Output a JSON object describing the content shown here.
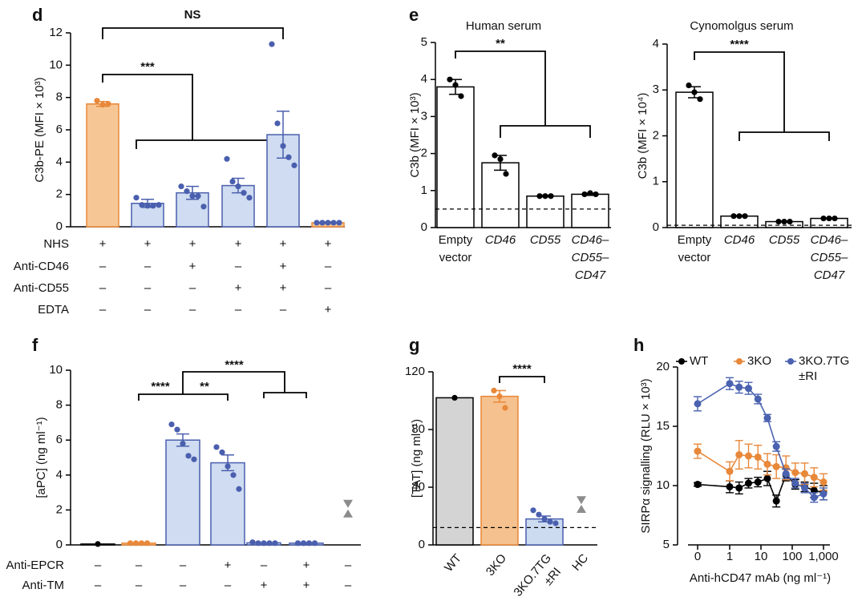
{
  "chart_data": [
    {
      "panel": "d",
      "type": "bar",
      "ylabel": "C3b-PE (MFI × 10³)",
      "ylim": [
        0,
        12
      ],
      "yticks": [
        0,
        2,
        4,
        6,
        8,
        10,
        12
      ],
      "values": [
        7.6,
        1.45,
        2.1,
        2.55,
        5.7,
        0.25
      ],
      "errors": [
        0.15,
        0.25,
        0.4,
        0.45,
        1.45,
        0.05
      ],
      "points": [
        [
          7.8,
          7.55,
          7.6
        ],
        [
          1.8,
          1.35,
          1.3,
          1.3,
          1.35
        ],
        [
          2.5,
          2.2,
          1.9,
          1.9,
          1.25
        ],
        [
          4.2,
          2.8,
          2.5,
          2.1,
          1.8
        ],
        [
          11.3,
          6.4,
          5.0,
          4.3,
          3.8
        ],
        [
          0.25,
          0.25,
          0.25,
          0.25,
          0.25
        ]
      ],
      "fill_colors": [
        "#f6c795",
        "#cfdcf1",
        "#cfdcf1",
        "#cfdcf1",
        "#cfdcf1",
        "#f6c795"
      ],
      "edge_colors": [
        "#e8883a",
        "#4a5fae",
        "#4a5fae",
        "#4a5fae",
        "#4a5fae",
        "#e8883a"
      ],
      "point_colors": [
        "#e8883a",
        "#4a5fae",
        "#4a5fae",
        "#4a5fae",
        "#4a5fae",
        "#4a5fae"
      ],
      "significance": [
        "NS",
        "***"
      ],
      "conditions": [
        {
          "label": "NHS",
          "marks": [
            "+",
            "+",
            "+",
            "+",
            "+",
            "+"
          ]
        },
        {
          "label": "Anti-CD46",
          "marks": [
            "–",
            "–",
            "+",
            "–",
            "+",
            "–"
          ]
        },
        {
          "label": "Anti-CD55",
          "marks": [
            "–",
            "–",
            "–",
            "+",
            "+",
            "–"
          ]
        },
        {
          "label": "EDTA",
          "marks": [
            "–",
            "–",
            "–",
            "–",
            "–",
            "+"
          ]
        }
      ]
    },
    {
      "panel": "e",
      "type": "bar",
      "title": "Human serum",
      "ylabel": "C3b (MFI × 10³)",
      "ylim": [
        0,
        5
      ],
      "yticks": [
        0,
        1,
        2,
        3,
        4,
        5
      ],
      "categories": [
        [
          "Empty",
          "vector"
        ],
        [
          "CD46"
        ],
        [
          "CD55"
        ],
        [
          "CD46–",
          "CD55–",
          "CD47"
        ]
      ],
      "values": [
        3.8,
        1.75,
        0.85,
        0.9
      ],
      "errors": [
        0.2,
        0.2,
        0.02,
        0.03
      ],
      "points": [
        [
          4.0,
          3.85,
          3.55
        ],
        [
          1.95,
          1.85,
          1.45
        ],
        [
          0.85,
          0.85,
          0.85
        ],
        [
          0.9,
          0.93,
          0.9
        ]
      ],
      "fill_colors": [
        "#ffffff",
        "#ffffff",
        "#ffffff",
        "#ffffff"
      ],
      "edge_colors": [
        "#000000",
        "#000000",
        "#000000",
        "#000000"
      ],
      "point_colors": [
        "#000000",
        "#000000",
        "#000000",
        "#000000"
      ],
      "threshold": 0.5,
      "significance": [
        "**"
      ]
    },
    {
      "type": "bar",
      "title": "Cynomolgus serum",
      "ylabel": "C3b (MFI × 10⁴)",
      "ylim": [
        0,
        4
      ],
      "yticks": [
        0,
        1,
        2,
        3,
        4
      ],
      "categories": [
        [
          "Empty",
          "vector"
        ],
        [
          "CD46"
        ],
        [
          "CD55"
        ],
        [
          "CD46–",
          "CD55–",
          "CD47"
        ]
      ],
      "values": [
        2.95,
        0.25,
        0.13,
        0.2
      ],
      "errors": [
        0.12,
        0.01,
        0.01,
        0.01
      ],
      "points": [
        [
          3.1,
          2.95,
          2.8
        ],
        [
          0.25,
          0.25,
          0.25
        ],
        [
          0.13,
          0.13,
          0.13
        ],
        [
          0.2,
          0.2,
          0.2
        ]
      ],
      "fill_colors": [
        "#ffffff",
        "#ffffff",
        "#ffffff",
        "#ffffff"
      ],
      "edge_colors": [
        "#000000",
        "#000000",
        "#000000",
        "#000000"
      ],
      "point_colors": [
        "#000000",
        "#000000",
        "#000000",
        "#000000"
      ],
      "threshold": 0.05,
      "significance": [
        "****"
      ]
    },
    {
      "panel": "f",
      "type": "bar",
      "ylabel": "[aPC] (ng ml⁻¹)",
      "ylim": [
        0,
        10
      ],
      "yticks": [
        0,
        2,
        4,
        6,
        8,
        10
      ],
      "values": [
        0.05,
        0.1,
        6.0,
        4.7,
        0.12,
        0.1,
        null
      ],
      "errors": [
        null,
        null,
        0.35,
        0.45,
        null,
        null,
        null
      ],
      "points": [
        [
          0.05
        ],
        [
          0.1,
          0.1,
          0.1,
          0.1
        ],
        [
          6.9,
          6.6,
          5.8,
          5.1,
          4.9
        ],
        [
          5.6,
          5.3,
          4.5,
          4.0,
          3.2
        ],
        [
          0.15,
          0.1,
          0.1,
          0.1,
          0.1
        ],
        [
          0.1,
          0.1,
          0.1,
          0.1
        ],
        [
          2.35,
          1.8
        ]
      ],
      "fill_colors": [
        "#000000",
        "#f6c795",
        "#cfdcf1",
        "#cfdcf1",
        "#cfdcf1",
        "#cfdcf1",
        null
      ],
      "edge_colors": [
        "#000000",
        "#e8883a",
        "#4a5fae",
        "#4a5fae",
        "#4a5fae",
        "#4a5fae",
        null
      ],
      "point_colors": [
        "#000000",
        "#e8883a",
        "#4a5fae",
        "#4a5fae",
        "#4a5fae",
        "#4a5fae",
        "#8c8c8c"
      ],
      "significance": [
        "****",
        "**",
        "****"
      ],
      "conditions": [
        {
          "label": "Anti-EPCR",
          "marks": [
            "–",
            "–",
            "–",
            "+",
            "–",
            "+",
            "–"
          ]
        },
        {
          "label": "Anti-TM",
          "marks": [
            "–",
            "–",
            "–",
            "–",
            "+",
            "+",
            "–"
          ]
        }
      ]
    },
    {
      "panel": "g",
      "type": "bar",
      "ylabel": "[TAT] (ng ml⁻¹)",
      "ylim": [
        0,
        120
      ],
      "yticks": [
        0,
        40,
        80,
        120
      ],
      "categories": [
        [
          "WT"
        ],
        [
          "3KO"
        ],
        [
          "3KO.7TG",
          "±RI"
        ],
        [
          "HC"
        ]
      ],
      "values": [
        102,
        103,
        18,
        null
      ],
      "errors": [
        null,
        4,
        2,
        null
      ],
      "points": [
        [
          102
        ],
        [
          107,
          103,
          95
        ],
        [
          24,
          21,
          18,
          16,
          15
        ],
        [
          31,
          25
        ]
      ],
      "fill_colors": [
        "#d4d4d4",
        "#f5c18e",
        "#cddbf1",
        null
      ],
      "edge_colors": [
        "#000000",
        "#e8883a",
        "#4a5fae",
        null
      ],
      "point_colors": [
        "#000000",
        "#e8883a",
        "#4a5fae",
        "#8c8c8c"
      ],
      "threshold": 12,
      "significance": [
        "****"
      ]
    },
    {
      "panel": "h",
      "type": "line",
      "ylabel": "SIRPα signalling (RLU × 10³)",
      "xlabel": "Anti-hCD47 mAb (ng ml⁻¹)",
      "xscale": "log",
      "x": [
        0,
        1,
        2,
        4,
        8,
        16,
        31,
        63,
        125,
        250,
        500,
        1000
      ],
      "xlim": [
        0,
        1000
      ],
      "xticks": [
        0,
        1,
        10,
        100,
        {
          "value": 1000,
          "label": "1,000"
        }
      ],
      "ylim": [
        5,
        20
      ],
      "yticks": [
        5,
        10,
        15,
        20
      ],
      "series": [
        {
          "name": [
            "WT"
          ],
          "color": "#000000",
          "values": [
            10.1,
            9.9,
            9.8,
            10.2,
            10.3,
            10.6,
            8.7,
            10.9,
            10.1,
            9.9,
            9.6,
            9.4
          ],
          "errors": [
            0.15,
            0.5,
            0.5,
            0.4,
            0.4,
            0.6,
            0.5,
            0.5,
            0.4,
            0.4,
            0.6,
            0.6
          ]
        },
        {
          "name": [
            "3KO"
          ],
          "color": "#e8883a",
          "values": [
            12.9,
            11.2,
            12.6,
            12.5,
            12.4,
            11.8,
            11.6,
            11.5,
            11.1,
            11.0,
            10.7,
            10.3
          ],
          "errors": [
            0.6,
            0.8,
            1.2,
            1.0,
            1.0,
            0.9,
            1.0,
            1.0,
            0.8,
            0.9,
            0.8,
            0.7
          ]
        },
        {
          "name": [
            "3KO.7TG",
            "±RI"
          ],
          "color": "#4a62b0",
          "values": [
            16.9,
            18.6,
            18.3,
            18.2,
            17.3,
            15.7,
            13.3,
            11.0,
            10.2,
            9.8,
            9.0,
            9.3
          ],
          "errors": [
            0.6,
            0.5,
            0.5,
            0.5,
            0.4,
            0.3,
            0.4,
            0.4,
            0.4,
            0.4,
            0.4,
            0.5
          ]
        }
      ]
    }
  ]
}
